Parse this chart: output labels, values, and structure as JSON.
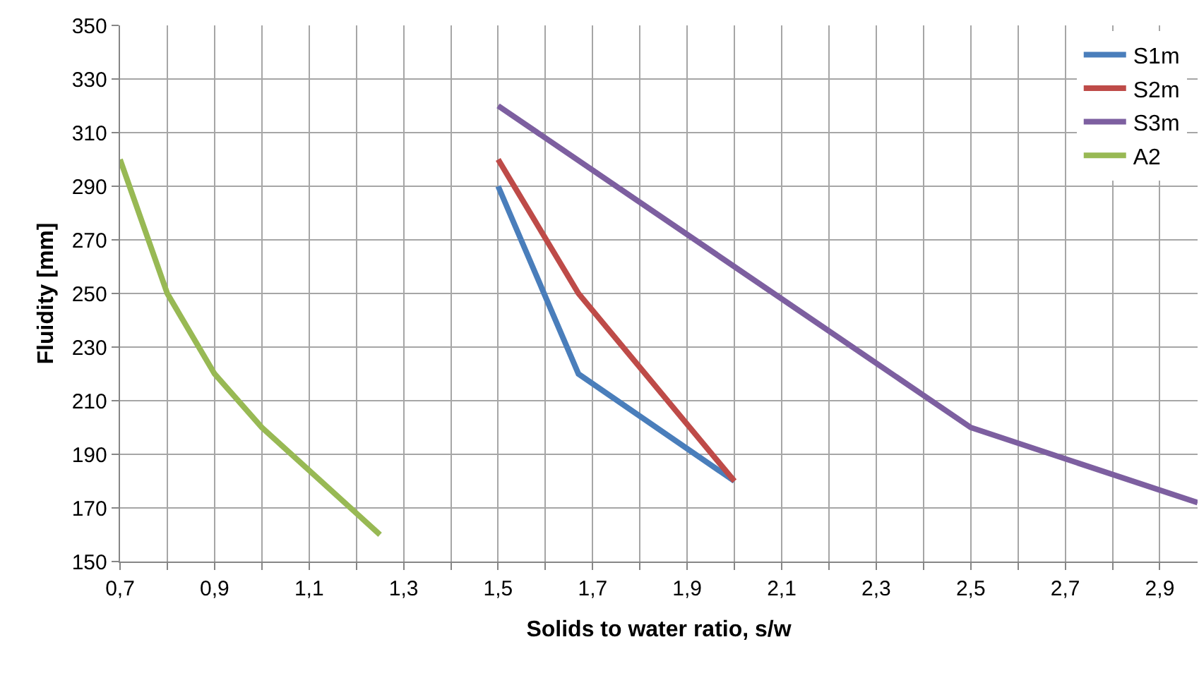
{
  "chart_data": {
    "type": "line",
    "xlabel": "Solids to water ratio, s/w",
    "ylabel": "Fluidity [mm]",
    "series": [
      {
        "name": "S1m",
        "color": "#4a7ebb",
        "x": [
          1.5,
          1.67,
          2.0
        ],
        "values": [
          290,
          220,
          180
        ]
      },
      {
        "name": "S2m",
        "color": "#be4b48",
        "x": [
          1.5,
          1.67,
          2.0
        ],
        "values": [
          300,
          250,
          180
        ]
      },
      {
        "name": "S3m",
        "color": "#7d5fa0",
        "x": [
          1.5,
          2.5,
          2.98
        ],
        "values": [
          320,
          200,
          172
        ]
      },
      {
        "name": "A2",
        "color": "#98b954",
        "x": [
          0.7,
          0.8,
          0.9,
          1.0,
          1.25
        ],
        "values": [
          300,
          250,
          220,
          200,
          160
        ]
      }
    ],
    "xlim": [
      0.7,
      2.98
    ],
    "xticks": [
      {
        "value": 0.7,
        "label": "0,7"
      },
      {
        "value": 0.8,
        "label": null
      },
      {
        "value": 0.9,
        "label": "0,9"
      },
      {
        "value": 1.0,
        "label": null
      },
      {
        "value": 1.1,
        "label": "1,1"
      },
      {
        "value": 1.2,
        "label": null
      },
      {
        "value": 1.3,
        "label": "1,3"
      },
      {
        "value": 1.4,
        "label": null
      },
      {
        "value": 1.5,
        "label": "1,5"
      },
      {
        "value": 1.6,
        "label": null
      },
      {
        "value": 1.7,
        "label": "1,7"
      },
      {
        "value": 1.8,
        "label": null
      },
      {
        "value": 1.9,
        "label": "1,9"
      },
      {
        "value": 2.0,
        "label": null
      },
      {
        "value": 2.1,
        "label": "2,1"
      },
      {
        "value": 2.2,
        "label": null
      },
      {
        "value": 2.3,
        "label": "2,3"
      },
      {
        "value": 2.4,
        "label": null
      },
      {
        "value": 2.5,
        "label": "2,5"
      },
      {
        "value": 2.6,
        "label": null
      },
      {
        "value": 2.7,
        "label": "2,7"
      },
      {
        "value": 2.8,
        "label": null
      },
      {
        "value": 2.9,
        "label": "2,9"
      }
    ],
    "ylim": [
      150,
      350
    ],
    "yticks": [
      150,
      170,
      190,
      210,
      230,
      250,
      270,
      290,
      310,
      330,
      350
    ],
    "grid": true,
    "legend": "top right",
    "marker": "none",
    "line_style": "solid"
  }
}
